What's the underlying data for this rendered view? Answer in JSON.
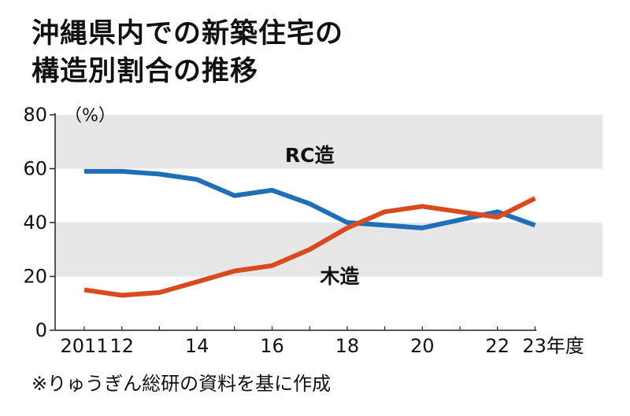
{
  "title_line1": "沖縄県内での新築住宅の",
  "title_line2": "構造別割合の推移",
  "note": "※りゅうぎん総研の資料を基に作成",
  "chart_data": {
    "type": "line",
    "title": "沖縄県内での新築住宅の構造別割合の推移",
    "unit_label": "（%）",
    "x": [
      2011,
      2012,
      2013,
      2014,
      2015,
      2016,
      2017,
      2018,
      2019,
      2020,
      2021,
      2022,
      2023
    ],
    "x_tick_labels": [
      {
        "x": 2011,
        "label": "2011"
      },
      {
        "x": 2012,
        "label": "12"
      },
      {
        "x": 2014,
        "label": "14"
      },
      {
        "x": 2016,
        "label": "16"
      },
      {
        "x": 2018,
        "label": "18"
      },
      {
        "x": 2020,
        "label": "20"
      },
      {
        "x": 2022,
        "label": "22"
      },
      {
        "x": 2023,
        "label": "23年度"
      }
    ],
    "y_ticks": [
      0,
      20,
      40,
      60,
      80
    ],
    "ylim": [
      0,
      80
    ],
    "bands": [
      [
        20,
        40
      ],
      [
        60,
        80
      ]
    ],
    "series": [
      {
        "name": "RC造",
        "color": "#1f6fb8",
        "values": [
          59,
          59,
          58,
          56,
          50,
          52,
          47,
          40,
          39,
          38,
          41,
          44,
          39
        ]
      },
      {
        "name": "木造",
        "color": "#d94a1e",
        "values": [
          15,
          13,
          14,
          18,
          22,
          24,
          30,
          38,
          44,
          46,
          44,
          42,
          49
        ]
      }
    ]
  }
}
